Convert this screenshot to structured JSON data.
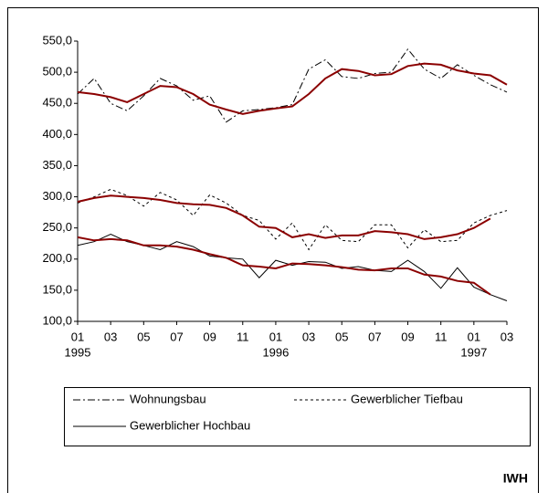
{
  "chart_data": {
    "type": "line",
    "categories": [
      "01",
      null,
      "03",
      null,
      "05",
      null,
      "07",
      null,
      "09",
      null,
      "11",
      null,
      "01",
      null,
      "03",
      null,
      "05",
      null,
      "07",
      null,
      "09",
      null,
      "11",
      null,
      "01",
      null,
      "03"
    ],
    "years": [
      "1995",
      null,
      null,
      null,
      null,
      null,
      null,
      null,
      null,
      null,
      null,
      null,
      "1996",
      null,
      null,
      null,
      null,
      null,
      null,
      null,
      null,
      null,
      null,
      null,
      "1997",
      null,
      null
    ],
    "ylim": [
      100,
      550
    ],
    "yticks": [
      {
        "value": 100,
        "label": "100,0"
      },
      {
        "value": 150,
        "label": "150,0"
      },
      {
        "value": 200,
        "label": "200,0"
      },
      {
        "value": 250,
        "label": "250,0"
      },
      {
        "value": 300,
        "label": "300,0"
      },
      {
        "value": 350,
        "label": "350,0"
      },
      {
        "value": 400,
        "label": "400,0"
      },
      {
        "value": 450,
        "label": "450,0"
      },
      {
        "value": 500,
        "label": "500,0"
      },
      {
        "value": 550,
        "label": "550,0"
      }
    ],
    "trend_color": "#8b0000",
    "series": [
      {
        "name": "Wohnungsbau",
        "color": "#000000",
        "dash": "8,3,2,3",
        "values": [
          465,
          490,
          450,
          438,
          462,
          490,
          478,
          455,
          462,
          420,
          438,
          440,
          443,
          448,
          505,
          520,
          493,
          490,
          498,
          500,
          537,
          505,
          490,
          512,
          495,
          480,
          468
        ],
        "trend": [
          468,
          465,
          460,
          452,
          465,
          478,
          476,
          465,
          448,
          440,
          433,
          438,
          442,
          445,
          465,
          490,
          505,
          502,
          495,
          497,
          510,
          514,
          512,
          503,
          498,
          495,
          480
        ]
      },
      {
        "name": "Gewerblicher Tiefbau",
        "color": "#000000",
        "dash": "3,3",
        "values": [
          290,
          300,
          312,
          302,
          285,
          307,
          295,
          270,
          303,
          290,
          270,
          262,
          232,
          258,
          215,
          255,
          230,
          228,
          255,
          255,
          218,
          247,
          228,
          230,
          258,
          270,
          278
        ],
        "trend": [
          292,
          298,
          302,
          300,
          298,
          295,
          290,
          288,
          287,
          282,
          270,
          252,
          250,
          235,
          240,
          234,
          238,
          238,
          245,
          243,
          240,
          232,
          235,
          240,
          250,
          265,
          null
        ]
      },
      {
        "name": "Gewerblicher Hochbau",
        "color": "#000000",
        "dash": "none",
        "values": [
          222,
          228,
          240,
          228,
          222,
          215,
          228,
          220,
          205,
          202,
          200,
          170,
          198,
          190,
          196,
          195,
          185,
          188,
          182,
          180,
          198,
          180,
          153,
          186,
          155,
          143,
          133
        ],
        "trend": [
          235,
          230,
          232,
          230,
          222,
          222,
          220,
          215,
          208,
          202,
          190,
          188,
          185,
          193,
          192,
          190,
          187,
          183,
          182,
          185,
          185,
          175,
          172,
          165,
          162,
          143,
          null
        ]
      }
    ],
    "source": "IWH"
  }
}
